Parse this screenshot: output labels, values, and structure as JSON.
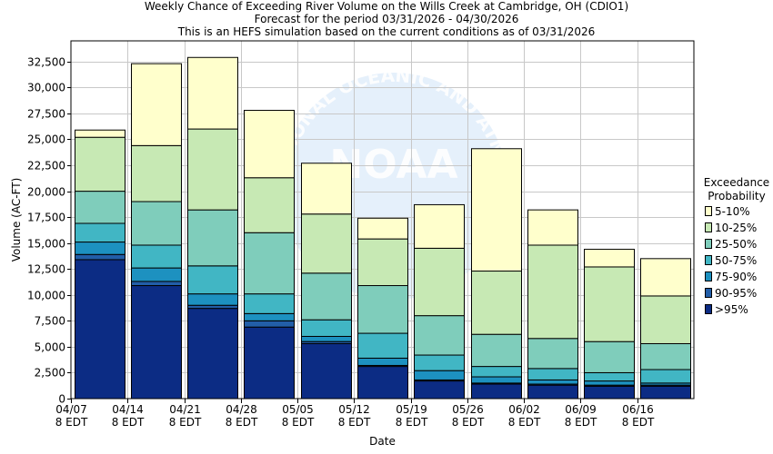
{
  "chart_data": {
    "type": "bar",
    "stacked": true,
    "title_lines": [
      "Weekly Chance of Exceeding River Volume on the Wills Creek at Cambridge, OH (CDIO1)",
      "Forecast for the period 03/31/2026 - 04/30/2026",
      "This is an HEFS simulation based on the current conditions as of 03/31/2026"
    ],
    "xlabel": "Date",
    "ylabel": "Volume (AC-FT)",
    "ylim": [
      0,
      34500
    ],
    "y_ticks": [
      0,
      2500,
      5000,
      7500,
      10000,
      12500,
      15000,
      17500,
      20000,
      22500,
      25000,
      27500,
      30000,
      32500
    ],
    "y_tick_labels": [
      "0",
      "2,500",
      "5,000",
      "7,500",
      "10,000",
      "12,500",
      "15,000",
      "17,500",
      "20,000",
      "22,500",
      "25,000",
      "27,500",
      "30,000",
      "32,500"
    ],
    "x_tick_labels": [
      {
        "line1": "04/07",
        "line2": "8 EDT"
      },
      {
        "line1": "04/14",
        "line2": "8 EDT"
      },
      {
        "line1": "04/21",
        "line2": "8 EDT"
      },
      {
        "line1": "04/28",
        "line2": "8 EDT"
      },
      {
        "line1": "05/05",
        "line2": "8 EDT"
      },
      {
        "line1": "05/12",
        "line2": "8 EDT"
      },
      {
        "line1": "05/19",
        "line2": "8 EDT"
      },
      {
        "line1": "05/26",
        "line2": "8 EDT"
      },
      {
        "line1": "06/02",
        "line2": "8 EDT"
      },
      {
        "line1": "06/09",
        "line2": "8 EDT"
      },
      {
        "line1": "06/16",
        "line2": "8 EDT"
      }
    ],
    "grid": true,
    "legend": {
      "title_lines": [
        "Exceedance",
        "Probability"
      ],
      "placement": "right",
      "items": [
        {
          "label": "5-10%",
          "color": "#ffffcc"
        },
        {
          "label": "10-25%",
          "color": "#c7e9b4"
        },
        {
          "label": "25-50%",
          "color": "#7fcdbb"
        },
        {
          "label": "50-75%",
          "color": "#41b6c4"
        },
        {
          "label": "75-90%",
          "color": "#1d91c0"
        },
        {
          "label": "90-95%",
          "color": "#225ea8"
        },
        {
          "label": ">95%",
          "color": "#0c2c84"
        }
      ]
    },
    "bars": [
      [
        13400,
        13900,
        15100,
        16900,
        20000,
        25200,
        25900
      ],
      [
        10900,
        11300,
        12600,
        14800,
        19000,
        24400,
        32300
      ],
      [
        8700,
        9000,
        10100,
        12800,
        18200,
        26000,
        32900
      ],
      [
        6900,
        7500,
        8200,
        10100,
        16000,
        21300,
        27800
      ],
      [
        5300,
        5500,
        6000,
        7600,
        12100,
        17800,
        22700
      ],
      [
        3100,
        3200,
        3900,
        6300,
        10900,
        15400,
        17400
      ],
      [
        1700,
        1800,
        2700,
        4200,
        8000,
        14500,
        18700
      ],
      [
        1400,
        1500,
        2100,
        3100,
        6200,
        12300,
        24100
      ],
      [
        1300,
        1400,
        1800,
        2900,
        5800,
        14800,
        18200
      ],
      [
        1200,
        1300,
        1700,
        2500,
        5500,
        12700,
        14400
      ],
      [
        1200,
        1300,
        1500,
        2800,
        5300,
        9900,
        13500
      ]
    ]
  },
  "watermark": {
    "arc_text": "NATIONAL OCEANIC AND ATMOSPHERIC ADMINISTRATION",
    "logo_text": "NOAA"
  }
}
